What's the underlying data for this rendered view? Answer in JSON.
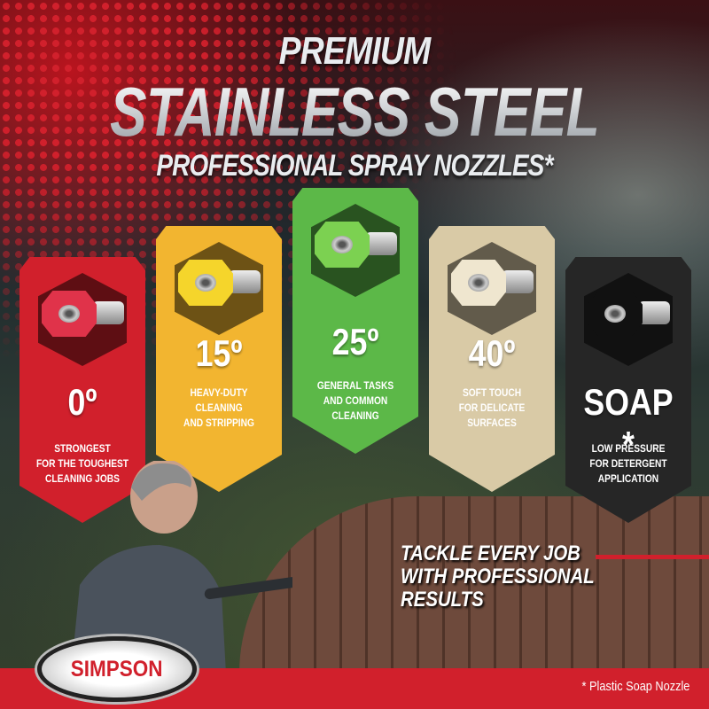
{
  "header": {
    "line1": "PREMIUM",
    "line2": "STAINLESS STEEL",
    "line3": "PROFESSIONAL SPRAY NOZZLES*"
  },
  "nozzles": [
    {
      "label": "0º",
      "desc": [
        "STRONGEST",
        "FOR THE TOUGHEST",
        "CLEANING JOBS"
      ],
      "color": "#d1202c",
      "tip": "#e0334a"
    },
    {
      "label": "15º",
      "desc": [
        "HEAVY-DUTY",
        "CLEANING",
        "AND STRIPPING"
      ],
      "color": "#f2b530",
      "tip": "#f5d52b"
    },
    {
      "label": "25º",
      "desc": [
        "GENERAL TASKS",
        "AND COMMON",
        "CLEANING"
      ],
      "color": "#5cb848",
      "tip": "#7cd151"
    },
    {
      "label": "40º",
      "desc": [
        "SOFT TOUCH",
        "FOR DELICATE",
        "SURFACES"
      ],
      "color": "#d9caa6",
      "tip": "#efe6cf"
    },
    {
      "label": "SOAP *",
      "desc": [
        "LOW PRESSURE",
        "FOR DETERGENT",
        "APPLICATION"
      ],
      "color": "#262626",
      "tip": "#111111"
    }
  ],
  "tagline": [
    "TACKLE EVERY JOB",
    "WITH PROFESSIONAL",
    "RESULTS"
  ],
  "brand": {
    "logo_text": "SIMPSON",
    "accent": "#d1202c"
  },
  "footnote": "* Plastic Soap Nozzle"
}
